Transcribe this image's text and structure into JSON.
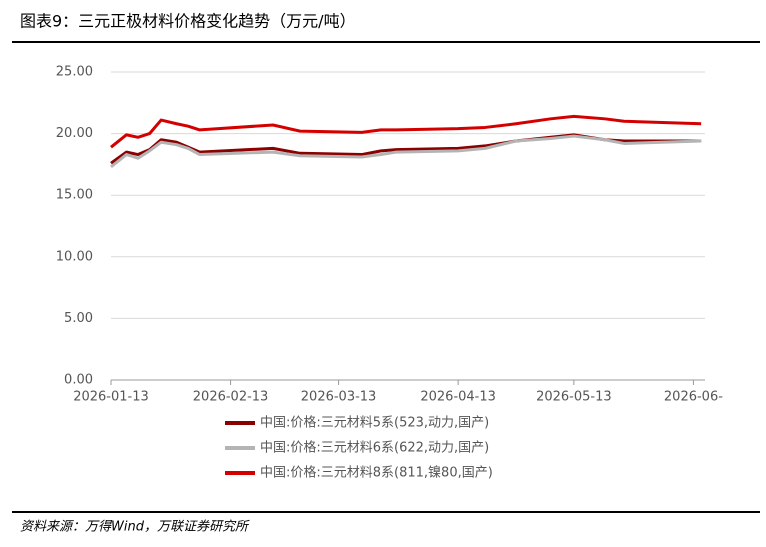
{
  "title": "图表9：三元正极材料价格变化趋势（万元/吨）",
  "source": "资料来源：万得Wind，万联证券研究所",
  "chart_data": {
    "type": "line",
    "x": [
      "2026-01-13",
      "2026-01-17",
      "2026-01-20",
      "2026-01-23",
      "2026-01-26",
      "2026-01-30",
      "2026-02-02",
      "2026-02-05",
      "2026-02-24",
      "2026-03-03",
      "2026-03-19",
      "2026-03-24",
      "2026-03-28",
      "2026-04-13",
      "2026-04-20",
      "2026-04-28",
      "2026-05-07",
      "2026-05-13",
      "2026-05-21",
      "2026-05-26",
      "2026-06-15"
    ],
    "series": [
      {
        "name": "中国:价格:三元材料5系(523,动力,国产)",
        "color": "#8b0000",
        "values": [
          17.6,
          18.5,
          18.3,
          18.7,
          19.5,
          19.3,
          18.9,
          18.5,
          18.8,
          18.4,
          18.3,
          18.6,
          18.7,
          18.8,
          19.0,
          19.4,
          19.7,
          19.9,
          19.5,
          19.4,
          19.4
        ]
      },
      {
        "name": "中国:价格:三元材料6系(622,动力,国产)",
        "color": "#b4b4b4",
        "values": [
          17.3,
          18.3,
          18.0,
          18.6,
          19.3,
          19.1,
          18.8,
          18.3,
          18.5,
          18.2,
          18.1,
          18.3,
          18.5,
          18.6,
          18.8,
          19.4,
          19.6,
          19.8,
          19.5,
          19.2,
          19.4
        ]
      },
      {
        "name": "中国:价格:三元材料8系(811,镍80,国产)",
        "color": "#d40000",
        "values": [
          18.9,
          19.9,
          19.7,
          20.0,
          21.1,
          20.8,
          20.6,
          20.3,
          20.7,
          20.2,
          20.1,
          20.3,
          20.3,
          20.4,
          20.5,
          20.8,
          21.2,
          21.4,
          21.2,
          21.0,
          20.8
        ]
      }
    ],
    "xlim": [
      "2026-01-13",
      "2026-06-16"
    ],
    "xticks": [
      "2026-01-13",
      "2026-02-13",
      "2026-03-13",
      "2026-04-13",
      "2026-05-13",
      {
        "value": "2026-06-13",
        "label": "2026-06-"
      }
    ],
    "ylim": [
      0,
      25
    ],
    "yticks": [
      {
        "value": 0,
        "label": "0.00"
      },
      {
        "value": 5,
        "label": "5.00"
      },
      {
        "value": 10,
        "label": "10.00"
      },
      {
        "value": 15,
        "label": "15.00"
      },
      {
        "value": 20,
        "label": "20.00"
      },
      {
        "value": 25,
        "label": "25.00"
      }
    ],
    "grid": true,
    "legend": "bottom"
  }
}
